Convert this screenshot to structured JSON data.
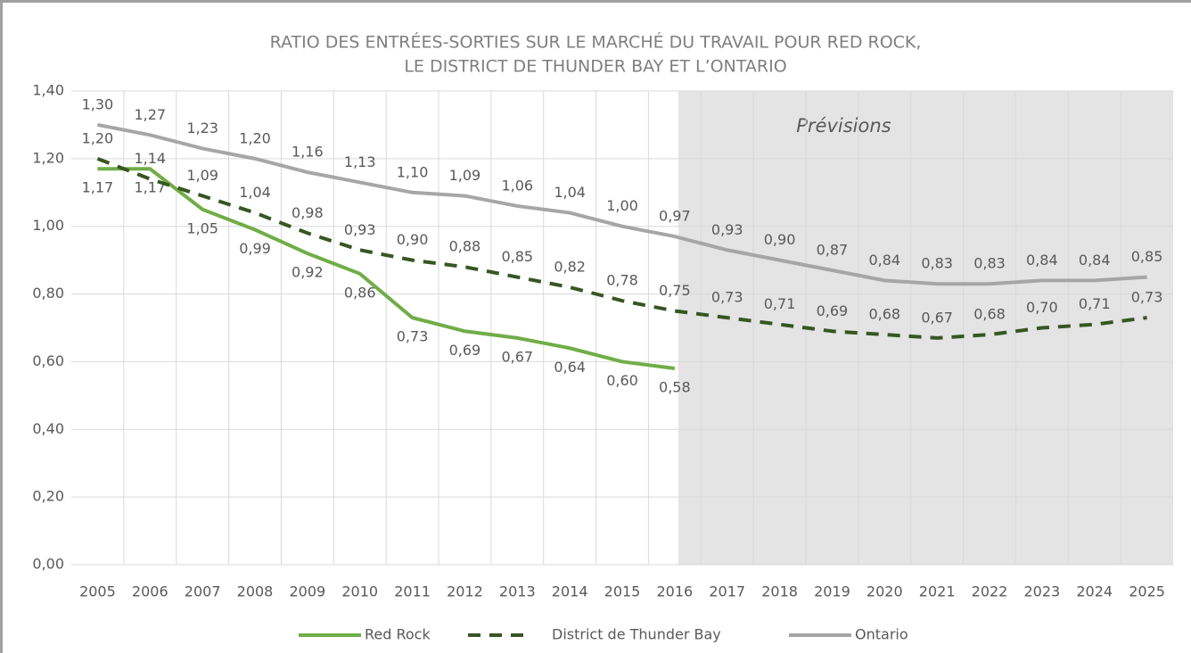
{
  "chart_data": {
    "type": "line",
    "title": [
      "RATIO DES ENTRÉES-SORTIES SUR LE MARCHÉ DU TRAVAIL POUR RED ROCK,",
      "LE DISTRICT DE THUNDER BAY ET L’ONTARIO"
    ],
    "annotation": "Prévisions",
    "categories": [
      "2005",
      "2006",
      "2007",
      "2008",
      "2009",
      "2010",
      "2011",
      "2012",
      "2013",
      "2014",
      "2015",
      "2016",
      "2017",
      "2018",
      "2019",
      "2020",
      "2021",
      "2022",
      "2023",
      "2024",
      "2025"
    ],
    "series": [
      {
        "name": "Red Rock",
        "color": "#70ad47",
        "dashed": false,
        "values": [
          1.17,
          1.17,
          1.05,
          0.99,
          0.92,
          0.86,
          0.73,
          0.69,
          0.67,
          0.64,
          0.6,
          0.58,
          null,
          null,
          null,
          null,
          null,
          null,
          null,
          null,
          null
        ],
        "value_labels": [
          "1,17",
          "1,17",
          "1,05",
          "0,99",
          "0,92",
          "0,86",
          "0,73",
          "0,69",
          "0,67",
          "0,64",
          "0,60",
          "0,58",
          null,
          null,
          null,
          null,
          null,
          null,
          null,
          null,
          null
        ]
      },
      {
        "name": "District de Thunder Bay",
        "color": "#375623",
        "dashed": true,
        "values": [
          1.2,
          1.14,
          1.09,
          1.04,
          0.98,
          0.93,
          0.9,
          0.88,
          0.85,
          0.82,
          0.78,
          0.75,
          0.73,
          0.71,
          0.69,
          0.68,
          0.67,
          0.68,
          0.7,
          0.71,
          0.73
        ],
        "value_labels": [
          "1,20",
          "1,14",
          "1,09",
          "1,04",
          "0,98",
          "0,93",
          "0,90",
          "0,88",
          "0,85",
          "0,82",
          "0,78",
          "0,75",
          "0,73",
          "0,71",
          "0,69",
          "0,68",
          "0,67",
          "0,68",
          "0,70",
          "0,71",
          "0,73"
        ]
      },
      {
        "name": "Ontario",
        "color": "#a6a6a6",
        "dashed": false,
        "values": [
          1.3,
          1.27,
          1.23,
          1.2,
          1.16,
          1.13,
          1.1,
          1.09,
          1.06,
          1.04,
          1.0,
          0.97,
          0.93,
          0.9,
          0.87,
          0.84,
          0.83,
          0.83,
          0.84,
          0.84,
          0.85
        ],
        "value_labels": [
          "1,30",
          "1,27",
          "1,23",
          "1,20",
          "1,16",
          "1,13",
          "1,10",
          "1,09",
          "1,06",
          "1,04",
          "1,00",
          "0,97",
          "0,93",
          "0,90",
          "0,87",
          "0,84",
          "0,83",
          "0,83",
          "0,84",
          "0,84",
          "0,85"
        ]
      }
    ],
    "ylim": [
      0,
      1.4
    ],
    "yticks": [
      {
        "value": 0,
        "label": "0,00"
      },
      {
        "value": 0.2,
        "label": "0,20"
      },
      {
        "value": 0.4,
        "label": "0,40"
      },
      {
        "value": 0.6,
        "label": "0,60"
      },
      {
        "value": 0.8,
        "label": "0,80"
      },
      {
        "value": 1.0,
        "label": "1,00"
      },
      {
        "value": 1.2,
        "label": "1,20"
      },
      {
        "value": 1.4,
        "label": "1,40"
      }
    ],
    "grid": true,
    "legend": "bottom"
  }
}
